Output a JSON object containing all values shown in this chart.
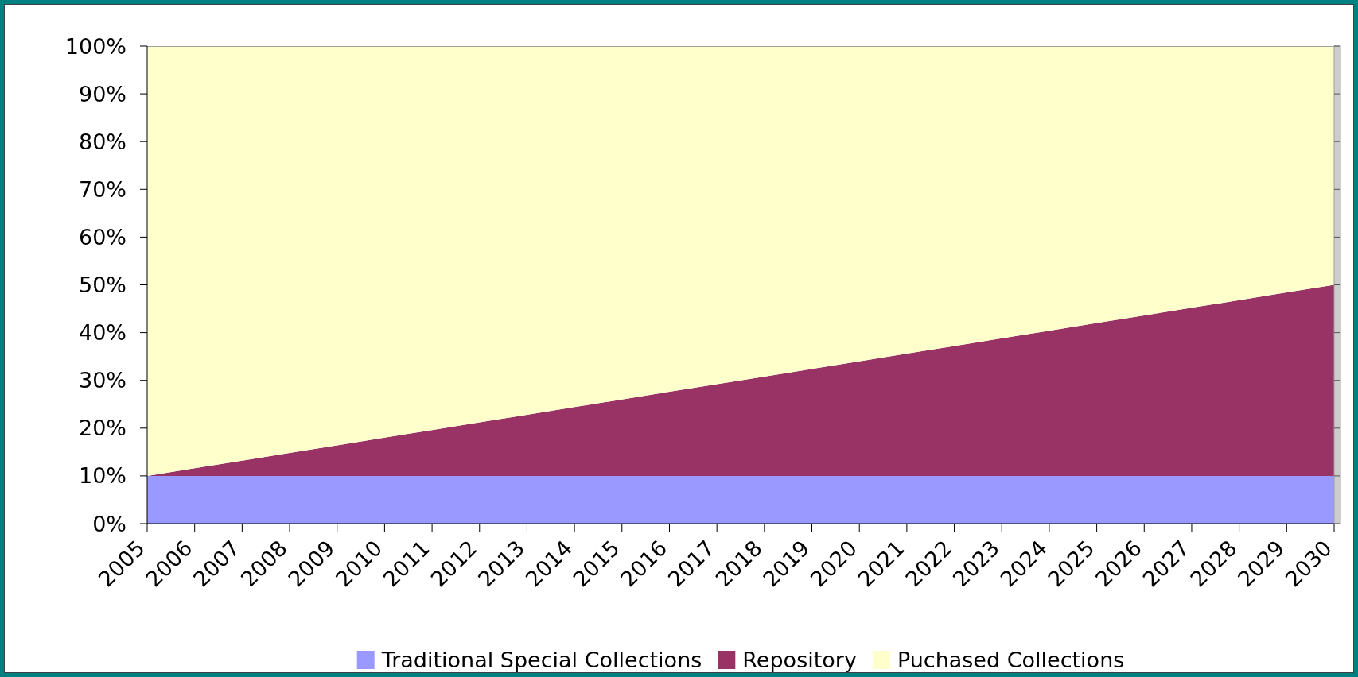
{
  "chart_data": {
    "type": "area",
    "stacked": true,
    "categories": [
      "2005",
      "2006",
      "2007",
      "2008",
      "2009",
      "2010",
      "2011",
      "2012",
      "2013",
      "2014",
      "2015",
      "2016",
      "2017",
      "2018",
      "2019",
      "2020",
      "2021",
      "2022",
      "2023",
      "2024",
      "2025",
      "2026",
      "2027",
      "2028",
      "2029",
      "2030"
    ],
    "series": [
      {
        "name": "Traditional Special Collections",
        "color": "#9999ff",
        "values": [
          10,
          10,
          10,
          10,
          10,
          10,
          10,
          10,
          10,
          10,
          10,
          10,
          10,
          10,
          10,
          10,
          10,
          10,
          10,
          10,
          10,
          10,
          10,
          10,
          10,
          10
        ]
      },
      {
        "name": "Repository",
        "color": "#993366",
        "values": [
          0,
          1.6,
          3.2,
          4.8,
          6.4,
          8,
          9.6,
          11.2,
          12.8,
          14.4,
          16,
          17.6,
          19.2,
          20.8,
          22.4,
          24,
          25.6,
          27.2,
          28.8,
          30.4,
          32,
          33.6,
          35.2,
          36.8,
          38.4,
          40
        ]
      },
      {
        "name": "Puchased Collections",
        "color": "#ffffcc",
        "values": [
          90,
          88.4,
          86.8,
          85.2,
          83.6,
          82,
          80.4,
          78.8,
          77.2,
          75.6,
          74,
          72.4,
          70.8,
          69.2,
          67.6,
          66,
          64.4,
          62.8,
          61.2,
          59.6,
          58,
          56.4,
          54.8,
          53.2,
          51.6,
          50
        ]
      }
    ],
    "ylim": [
      0,
      100
    ],
    "yticks": [
      {
        "value": 0,
        "label": "0%"
      },
      {
        "value": 10,
        "label": "10%"
      },
      {
        "value": 20,
        "label": "20%"
      },
      {
        "value": 30,
        "label": "30%"
      },
      {
        "value": 40,
        "label": "40%"
      },
      {
        "value": 50,
        "label": "50%"
      },
      {
        "value": 60,
        "label": "60%"
      },
      {
        "value": 70,
        "label": "70%"
      },
      {
        "value": 80,
        "label": "80%"
      },
      {
        "value": 90,
        "label": "90%"
      },
      {
        "value": 100,
        "label": "100%"
      }
    ],
    "legend": "bottom"
  }
}
